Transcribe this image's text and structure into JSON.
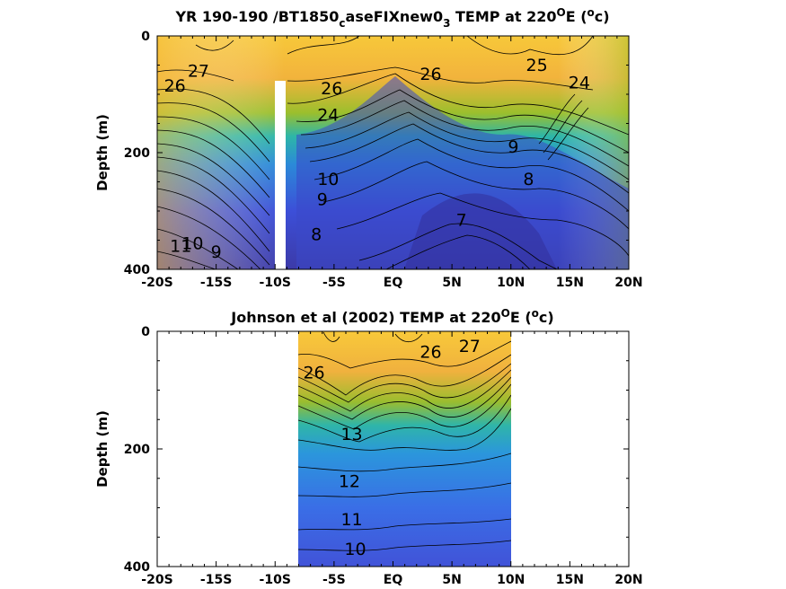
{
  "chart_data": [
    {
      "type": "contour",
      "title": "YR 190-190 /BT1850",
      "title_sub": "c",
      "title_mid": "aseFIXnew0",
      "title_sub2": "3",
      "title_end": " TEMP at 220",
      "title_sup": "O",
      "title_e": "E (",
      "title_sup2": "o",
      "title_c": "c)",
      "ylabel": "Depth (m)",
      "xlim": [
        -20,
        20
      ],
      "ylim": [
        0,
        400
      ],
      "x_ticks": [
        "-20S",
        "-15S",
        "-10S",
        "-5S",
        "EQ",
        "5N",
        "10N",
        "15N",
        "20N"
      ],
      "y_ticks": [
        "0",
        "200",
        "400"
      ],
      "contour_labels": [
        {
          "text": "27",
          "x": -16.5,
          "y": 70
        },
        {
          "text": "26",
          "x": -18.5,
          "y": 95
        },
        {
          "text": "26",
          "x": -5.2,
          "y": 100
        },
        {
          "text": "26",
          "x": 3.2,
          "y": 75
        },
        {
          "text": "25",
          "x": 12.2,
          "y": 60
        },
        {
          "text": "24",
          "x": 15.8,
          "y": 90
        },
        {
          "text": "24",
          "x": -5.5,
          "y": 145
        },
        {
          "text": "10",
          "x": -17.0,
          "y": 365
        },
        {
          "text": "9",
          "x": -15.0,
          "y": 380
        },
        {
          "text": "11",
          "x": -18.0,
          "y": 370
        },
        {
          "text": "10",
          "x": -5.5,
          "y": 255
        },
        {
          "text": "9",
          "x": -6.0,
          "y": 290
        },
        {
          "text": "8",
          "x": -6.5,
          "y": 350
        },
        {
          "text": "8",
          "x": 11.5,
          "y": 255
        },
        {
          "text": "7",
          "x": 5.8,
          "y": 325
        },
        {
          "text": "9",
          "x": 10.2,
          "y": 200
        }
      ],
      "colormap": "parula",
      "gap_x": -9.5
    },
    {
      "type": "contour",
      "title": "Johnson et al (2002) TEMP at 220",
      "title_sup": "O",
      "title_e": "E (",
      "title_sup2": "o",
      "title_c": "c)",
      "ylabel": "Depth (m)",
      "xlim": [
        -20,
        20
      ],
      "ylim": [
        0,
        400
      ],
      "data_xrange": [
        -8,
        10
      ],
      "x_ticks": [
        "-20S",
        "-15S",
        "-10S",
        "-5S",
        "EQ",
        "5N",
        "10N",
        "15N",
        "20N"
      ],
      "y_ticks": [
        "0",
        "200",
        "400"
      ],
      "contour_labels": [
        {
          "text": "27",
          "x": 6.5,
          "y": 35
        },
        {
          "text": "26",
          "x": 3.2,
          "y": 45
        },
        {
          "text": "26",
          "x": -6.7,
          "y": 80
        },
        {
          "text": "13",
          "x": -3.5,
          "y": 185
        },
        {
          "text": "12",
          "x": -3.7,
          "y": 265
        },
        {
          "text": "11",
          "x": -3.5,
          "y": 330
        },
        {
          "text": "10",
          "x": -3.2,
          "y": 380
        }
      ],
      "colormap": "parula"
    }
  ]
}
